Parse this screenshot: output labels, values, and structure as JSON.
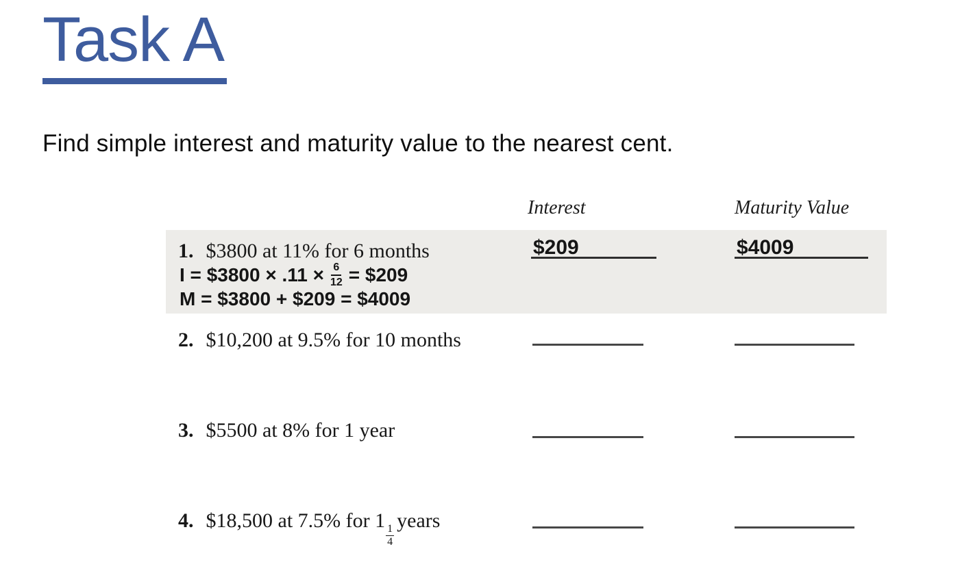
{
  "page": {
    "title": "Task A",
    "instruction": "Find simple interest and maturity value to the nearest cent."
  },
  "colors": {
    "title_blue": "#3E5C9E",
    "highlight_gray": "#EDECE9",
    "line_dark": "#474747"
  },
  "table": {
    "headers": {
      "interest": "Interest",
      "maturity": "Maturity Value"
    },
    "problems": [
      {
        "number": "1.",
        "text": "$3800 at 11% for 6 months",
        "interest_answer": "$209",
        "maturity_answer": "$4009",
        "work": {
          "line1_prefix": "I = $3800 × .11 ×",
          "line1_frac_num": "6",
          "line1_frac_den": "12",
          "line1_suffix": "= $209",
          "line2": "M = $3800 + $209 = $4009"
        }
      },
      {
        "number": "2.",
        "text": "$10,200 at 9.5% for 10 months"
      },
      {
        "number": "3.",
        "text": "$5500 at 8% for 1 year"
      },
      {
        "number": "4.",
        "text_prefix": "$18,500 at 7.5% for 1",
        "frac_num": "1",
        "frac_den": "4",
        "text_suffix": "years"
      }
    ]
  }
}
